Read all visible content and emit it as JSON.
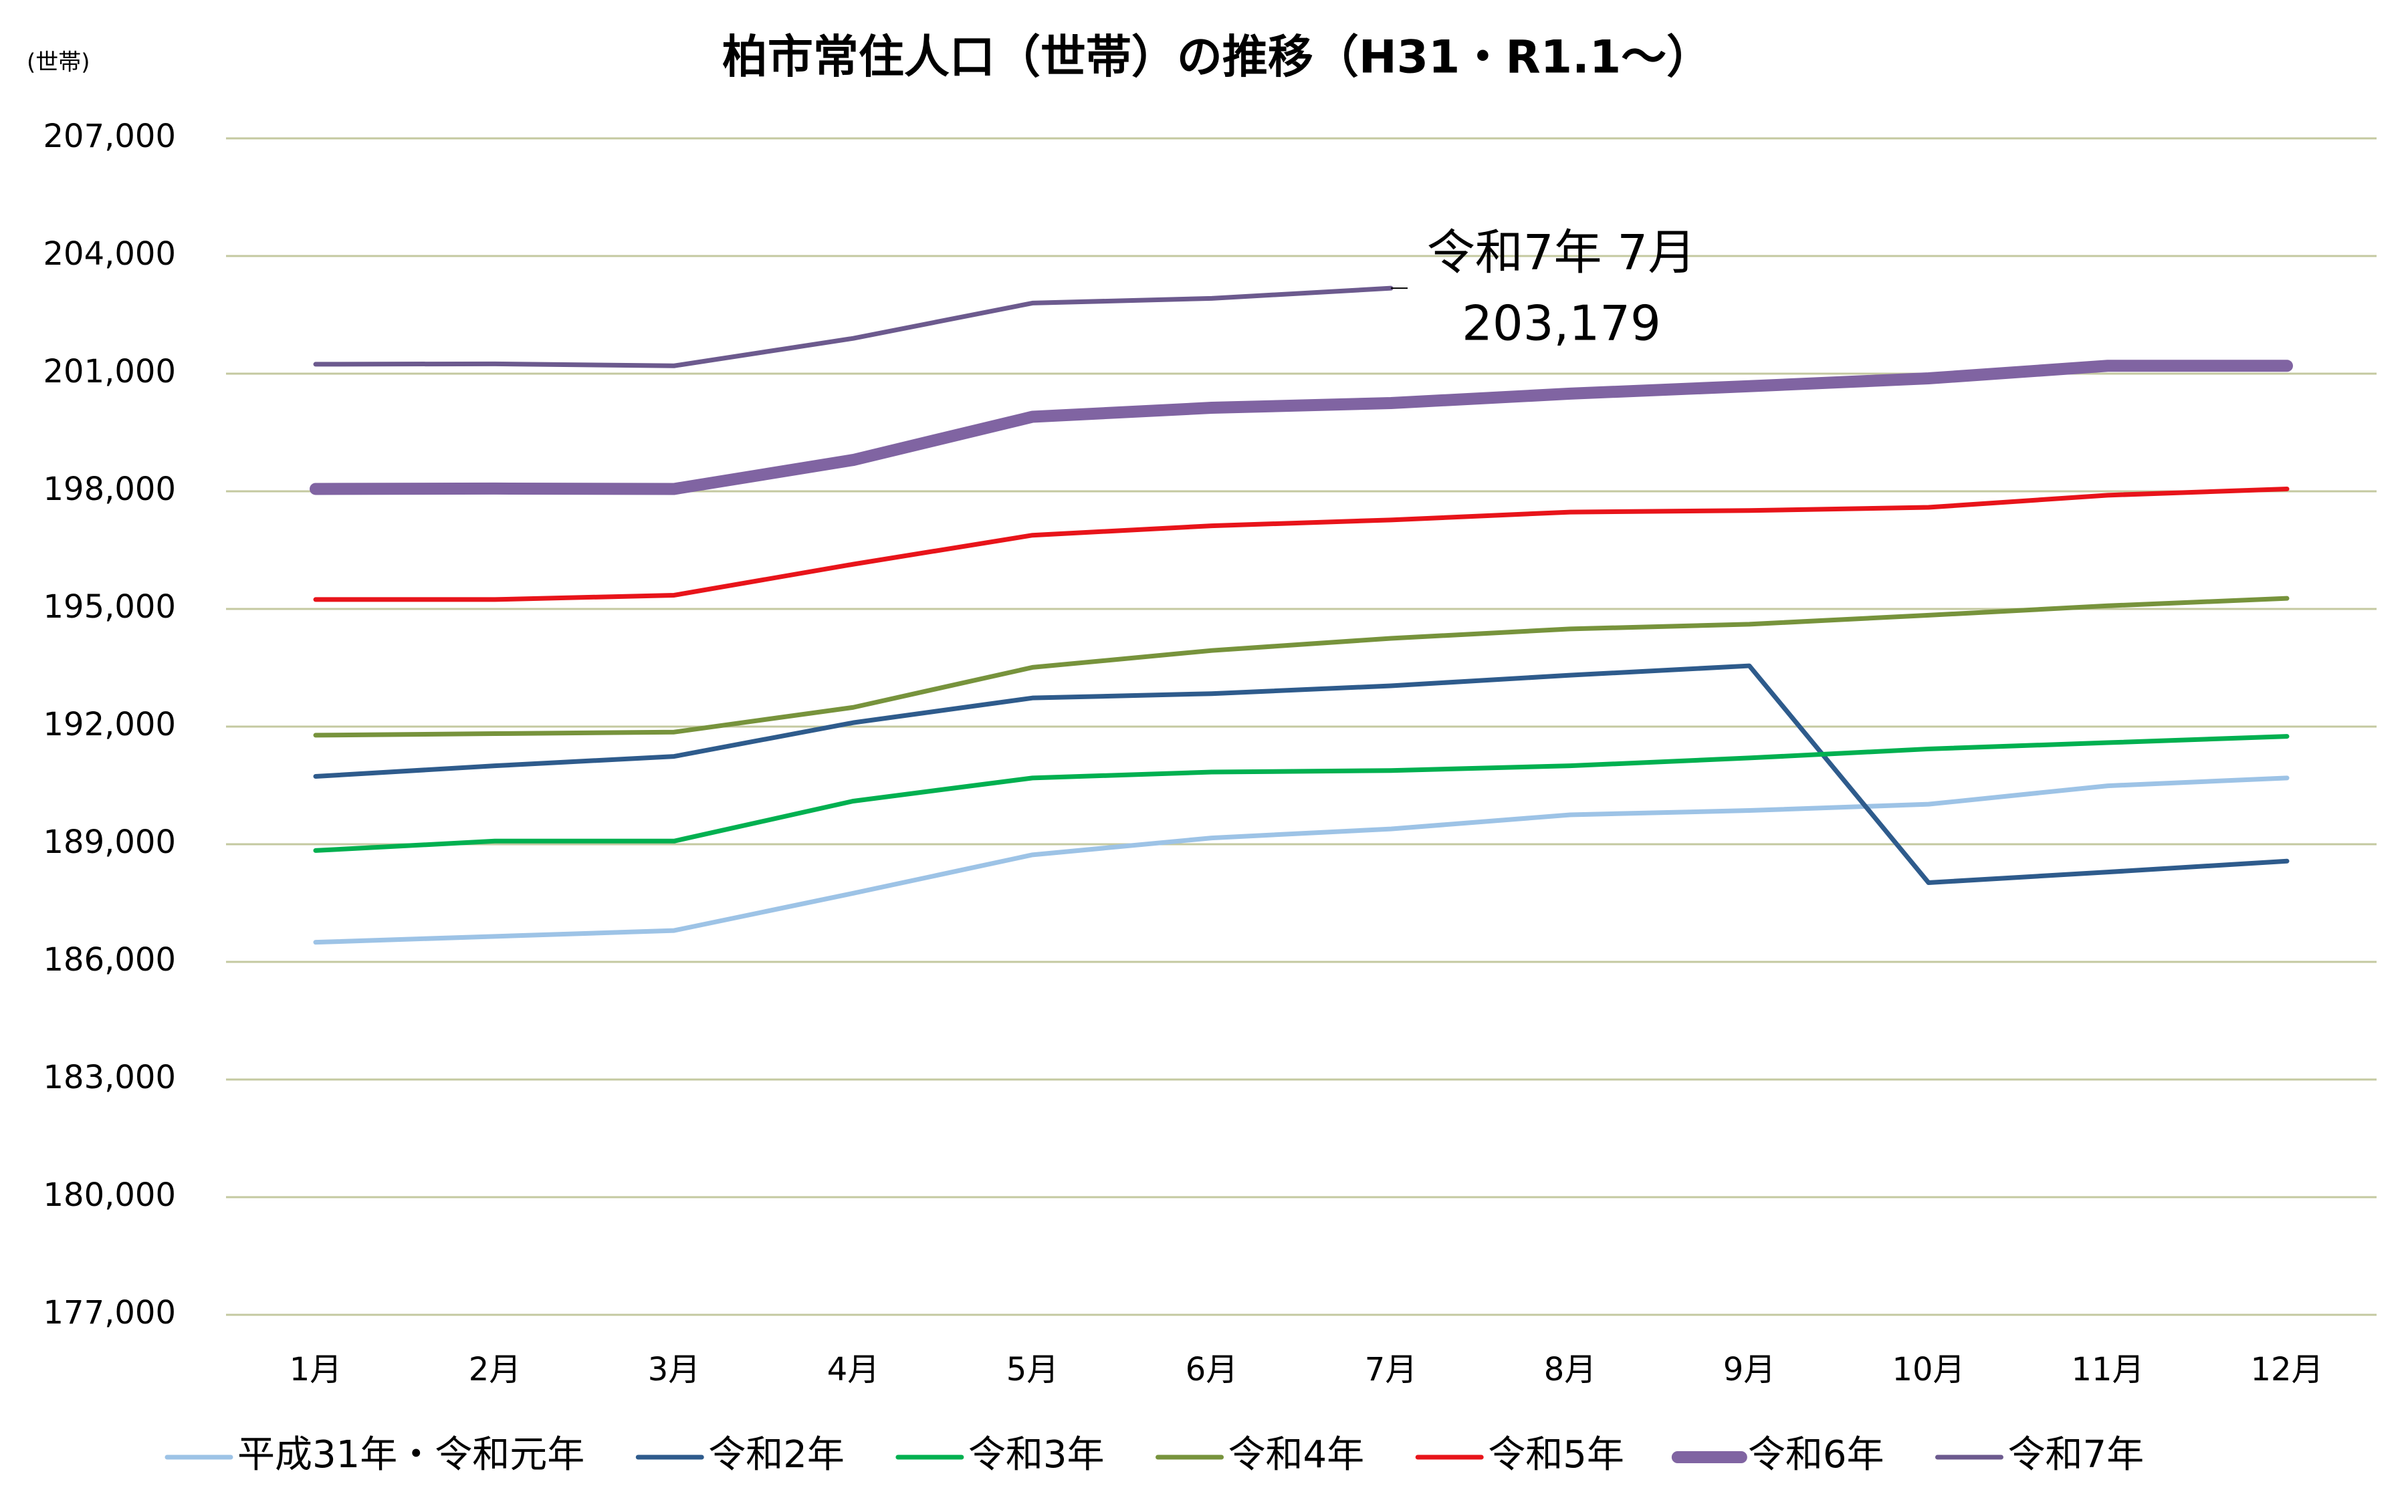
{
  "chart_data": {
    "type": "line",
    "title": "柏市常住人口（世帯）の推移（H31・R1.1～）",
    "y_label": "(世帯)",
    "categories": [
      "1月",
      "2月",
      "3月",
      "4月",
      "5月",
      "6月",
      "7月",
      "8月",
      "9月",
      "10月",
      "11月",
      "12月"
    ],
    "series": [
      {
        "name": "平成31年・令和元年",
        "color": "#9dc3e6",
        "line_width": 7,
        "values": [
          186500,
          186650,
          186800,
          187750,
          188730,
          189160,
          189390,
          189750,
          189860,
          190020,
          190490,
          190690
        ]
      },
      {
        "name": "令和2年",
        "color": "#2e5b8c",
        "line_width": 7,
        "values": [
          190730,
          191000,
          191240,
          192100,
          192730,
          192840,
          193040,
          193310,
          193550,
          188020,
          188290,
          188570
        ]
      },
      {
        "name": "令和3年",
        "color": "#00b050",
        "line_width": 7,
        "values": [
          188840,
          189080,
          189080,
          190100,
          190690,
          190840,
          190880,
          191000,
          191200,
          191430,
          191590,
          191750
        ]
      },
      {
        "name": "令和4年",
        "color": "#77933c",
        "line_width": 7,
        "values": [
          191780,
          191820,
          191860,
          192490,
          193510,
          193940,
          194250,
          194490,
          194610,
          194840,
          195080,
          195270
        ]
      },
      {
        "name": "令和5年",
        "color": "#e8141a",
        "line_width": 7,
        "values": [
          195240,
          195240,
          195350,
          196140,
          196880,
          197120,
          197270,
          197470,
          197510,
          197590,
          197900,
          198060
        ]
      },
      {
        "name": "令和6年",
        "color": "#8064a2",
        "line_width": 18,
        "values": [
          198060,
          198070,
          198060,
          198800,
          199900,
          200130,
          200250,
          200490,
          200680,
          200880,
          201200,
          201200
        ]
      },
      {
        "name": "令和7年",
        "color": "#6c5a8e",
        "line_width": 7,
        "values": [
          201240,
          201250,
          201200,
          201900,
          202800,
          202920,
          203179,
          null,
          null,
          null,
          null,
          null
        ],
        "value_labels": [
          null,
          null,
          null,
          null,
          null,
          null,
          "203,179",
          null,
          null,
          null,
          null,
          null
        ]
      }
    ],
    "annotation": "令和7年 7月",
    "ylim": [
      177000,
      207000
    ],
    "yticks": [
      {
        "value": 177000,
        "label": "177,000"
      },
      {
        "value": 180000,
        "label": "180,000"
      },
      {
        "value": 183000,
        "label": "183,000"
      },
      {
        "value": 186000,
        "label": "186,000"
      },
      {
        "value": 189000,
        "label": "189,000"
      },
      {
        "value": 192000,
        "label": "192,000"
      },
      {
        "value": 195000,
        "label": "195,000"
      },
      {
        "value": 198000,
        "label": "198,000"
      },
      {
        "value": 201000,
        "label": "201,000"
      },
      {
        "value": 204000,
        "label": "204,000"
      },
      {
        "value": 207000,
        "label": "207,000"
      }
    ],
    "grid": true,
    "grid_color": "#c4c9a0",
    "legend": "bottom"
  }
}
